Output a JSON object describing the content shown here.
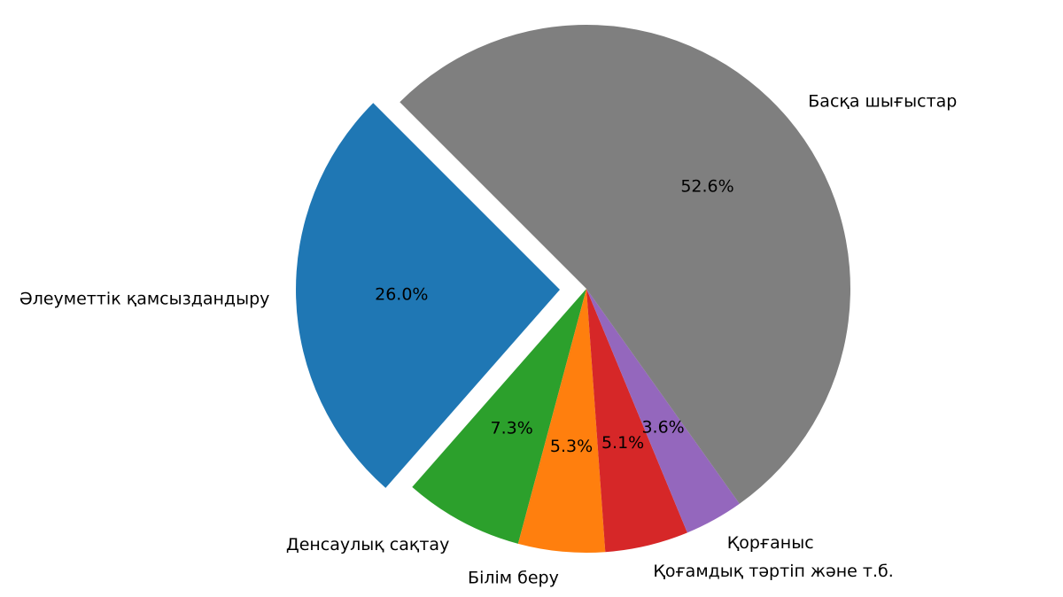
{
  "chart_data": {
    "type": "pie",
    "title": "",
    "start_angle_deg": 135,
    "direction": "counterclockwise",
    "legend": "none",
    "slices": [
      {
        "label": "Әлеуметтік қамсыздандыру",
        "value": 26.0,
        "pct_text": "26.0%",
        "color": "#1f77b4",
        "exploded": true
      },
      {
        "label": "Денсаулық сақтау",
        "value": 7.3,
        "pct_text": "7.3%",
        "color": "#2ca02c",
        "exploded": false
      },
      {
        "label": "Білім беру",
        "value": 5.3,
        "pct_text": "5.3%",
        "color": "#ff7f0e",
        "exploded": false
      },
      {
        "label": "Қоғамдық тәртіп және т.б.",
        "value": 5.1,
        "pct_text": "5.1%",
        "color": "#d62728",
        "exploded": false
      },
      {
        "label": "Қорғаныс",
        "value": 3.6,
        "pct_text": "3.6%",
        "color": "#9467bd",
        "exploded": false
      },
      {
        "label": "Басқа шығыстар",
        "value": 52.6,
        "pct_text": "52.6%",
        "color": "#7f7f7f",
        "exploded": false
      }
    ]
  }
}
